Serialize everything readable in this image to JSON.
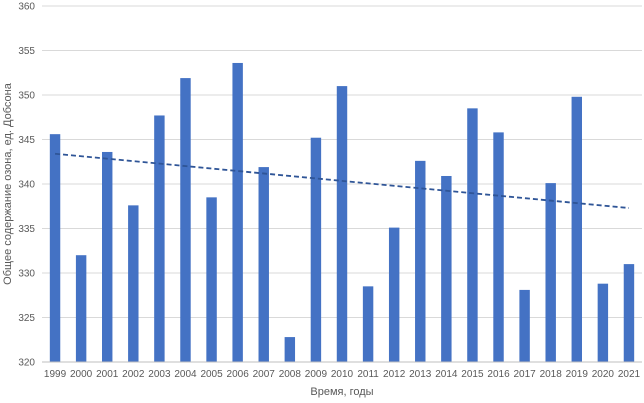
{
  "chart_data": {
    "type": "bar",
    "categories": [
      "1999",
      "2000",
      "2001",
      "2002",
      "2003",
      "2004",
      "2005",
      "2006",
      "2007",
      "2008",
      "2009",
      "2010",
      "2011",
      "2012",
      "2013",
      "2014",
      "2015",
      "2016",
      "2017",
      "2018",
      "2019",
      "2020",
      "2021"
    ],
    "series": [
      {
        "values": [
          345.6,
          332.0,
          343.6,
          337.6,
          347.7,
          351.9,
          338.5,
          353.6,
          341.9,
          322.8,
          345.2,
          351.0,
          328.5,
          335.1,
          342.6,
          340.9,
          348.5,
          345.8,
          328.1,
          340.1,
          349.8,
          328.8,
          331.0
        ],
        "color": "#4472c4"
      }
    ],
    "trendline": {
      "type": "linear",
      "start": 343.4,
      "end": 337.3,
      "color": "#2f5597",
      "style": "dashed"
    },
    "xlabel": "Время, годы",
    "ylabel": "Общее содержание озона, ед. Добсона",
    "ylim": [
      320,
      360
    ],
    "yticks": [
      320,
      325,
      330,
      335,
      340,
      345,
      350,
      355,
      360
    ],
    "grid": true
  }
}
